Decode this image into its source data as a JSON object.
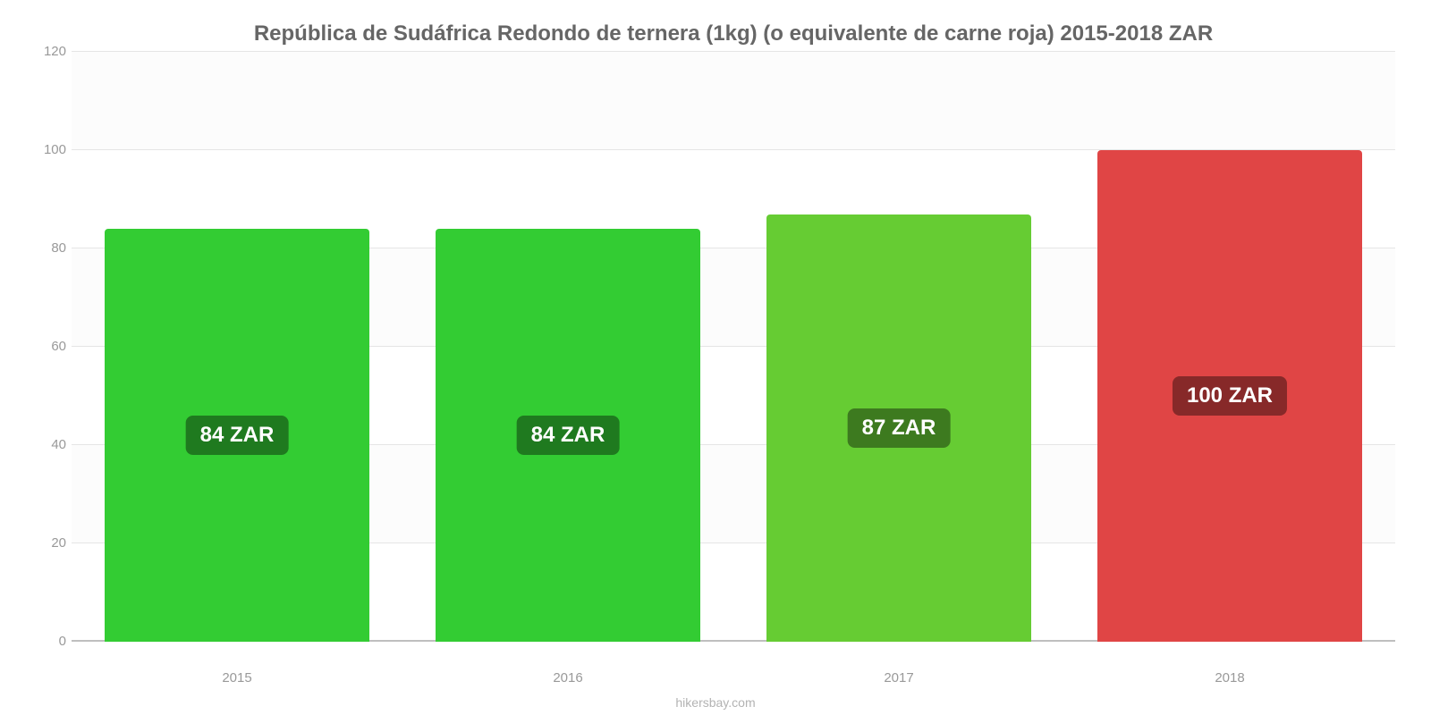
{
  "chart": {
    "type": "bar",
    "title": "República de Sudáfrica Redondo de ternera (1kg) (o equivalente de carne roja) 2015-2018 ZAR",
    "title_fontsize": 24,
    "title_color": "#666666",
    "background_color": "#ffffff",
    "grid_area_bg": "#fcfcfc",
    "axis_line_color": "#bfbfbf",
    "gridline_color": "#e5e5e5",
    "tick_color": "#999999",
    "tick_fontsize": 15,
    "ylim": [
      0,
      120
    ],
    "ytick_step": 20,
    "yticks": [
      0,
      20,
      40,
      60,
      80,
      100,
      120
    ],
    "categories": [
      "2015",
      "2016",
      "2017",
      "2018"
    ],
    "values": [
      84,
      84,
      87,
      100
    ],
    "value_labels": [
      "84 ZAR",
      "84 ZAR",
      "87 ZAR",
      "100 ZAR"
    ],
    "bar_colors": [
      "#33cc33",
      "#33cc33",
      "#66cc33",
      "#e04545"
    ],
    "label_bg_colors": [
      "#1f7a1f",
      "#1f7a1f",
      "#3d7a1f",
      "#872929"
    ],
    "label_text_color": "#ffffff",
    "label_fontsize": 24,
    "bar_width_pct": 20,
    "bar_gap_pct": 5,
    "bar_border_radius": 4,
    "attribution": "hikersbay.com",
    "attribution_color": "#b3b3b3"
  }
}
